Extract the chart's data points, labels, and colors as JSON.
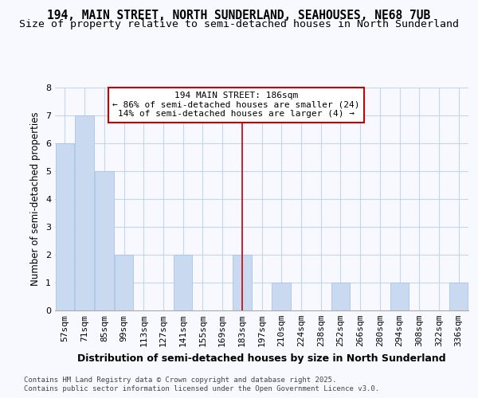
{
  "title": "194, MAIN STREET, NORTH SUNDERLAND, SEAHOUSES, NE68 7UB",
  "subtitle": "Size of property relative to semi-detached houses in North Sunderland",
  "xlabel": "Distribution of semi-detached houses by size in North Sunderland",
  "ylabel": "Number of semi-detached properties",
  "categories": [
    "57sqm",
    "71sqm",
    "85sqm",
    "99sqm",
    "113sqm",
    "127sqm",
    "141sqm",
    "155sqm",
    "169sqm",
    "183sqm",
    "197sqm",
    "210sqm",
    "224sqm",
    "238sqm",
    "252sqm",
    "266sqm",
    "280sqm",
    "294sqm",
    "308sqm",
    "322sqm",
    "336sqm"
  ],
  "values": [
    6,
    7,
    5,
    2,
    0,
    0,
    2,
    0,
    0,
    2,
    0,
    1,
    0,
    0,
    1,
    0,
    0,
    1,
    0,
    0,
    1
  ],
  "bar_color": "#c9daf0",
  "bar_edge_color": "#aac4e8",
  "grid_color": "#c5d5ea",
  "background_color": "#f7f9ff",
  "annotation_box_color": "#cc0000",
  "annotation_title": "194 MAIN STREET: 186sqm",
  "annotation_line1": "← 86% of semi-detached houses are smaller (24)",
  "annotation_line2": "14% of semi-detached houses are larger (4) →",
  "marker_index": 9,
  "ylim": [
    0,
    8
  ],
  "yticks": [
    0,
    1,
    2,
    3,
    4,
    5,
    6,
    7,
    8
  ],
  "footnote_line1": "Contains HM Land Registry data © Crown copyright and database right 2025.",
  "footnote_line2": "Contains public sector information licensed under the Open Government Licence v3.0.",
  "title_fontsize": 10.5,
  "subtitle_fontsize": 9.5,
  "xlabel_fontsize": 9,
  "ylabel_fontsize": 8.5,
  "tick_fontsize": 8,
  "annotation_fontsize": 8,
  "footnote_fontsize": 6.5
}
